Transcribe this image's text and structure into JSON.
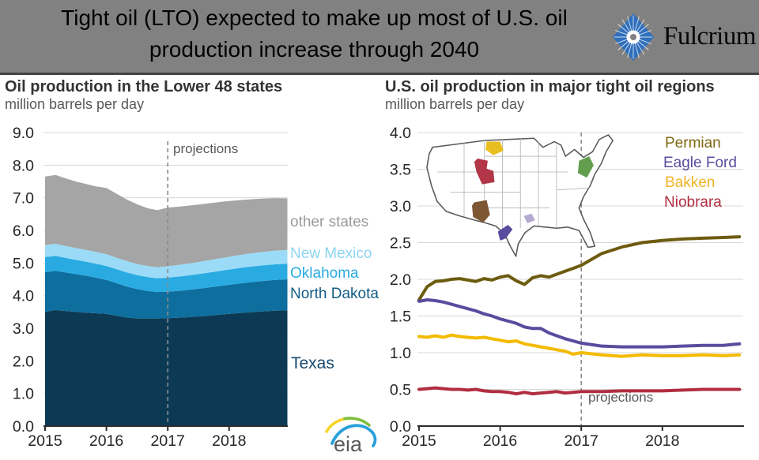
{
  "header": {
    "title_line1": "Tight oil (LTO) expected to make up most of U.S. oil",
    "title_line2": "production increase through 2040",
    "logo_text": "Fulcrium",
    "background_color": "#818181",
    "logo_diamond_color": "#2f6fbc"
  },
  "footer": {
    "eia_text": "eia"
  },
  "colors": {
    "gridline": "#d8d8d8",
    "axis": "#2b2b2b",
    "projection_dash": "#8a8a8a",
    "eia_green": "#7fbf3f",
    "eia_yellow": "#f5d327",
    "eia_blue": "#2aa0da"
  },
  "chart_data": [
    {
      "type": "area",
      "stacked": true,
      "title": "Oil production in the Lower 48 states",
      "subtitle": "million barrels per day",
      "annotation": "projections",
      "projection_start_x": 2017,
      "ylim": [
        0,
        9
      ],
      "yticks": [
        "0.0",
        "1.0",
        "2.0",
        "3.0",
        "4.0",
        "5.0",
        "6.0",
        "7.0",
        "8.0",
        "9.0"
      ],
      "xticks": [
        "2015",
        "2016",
        "2017",
        "2018"
      ],
      "x": [
        2015,
        2015.17,
        2015.33,
        2015.5,
        2015.67,
        2015.83,
        2016,
        2016.17,
        2016.33,
        2016.5,
        2016.67,
        2016.83,
        2017,
        2017.25,
        2017.5,
        2017.75,
        2018,
        2018.25,
        2018.5,
        2018.75,
        2018.95
      ],
      "series": [
        {
          "name": "Texas",
          "color": "#0c3a55",
          "label_color": "#174a70",
          "values": [
            3.5,
            3.56,
            3.53,
            3.5,
            3.48,
            3.46,
            3.44,
            3.38,
            3.33,
            3.3,
            3.3,
            3.3,
            3.31,
            3.33,
            3.36,
            3.4,
            3.44,
            3.48,
            3.51,
            3.54,
            3.55
          ]
        },
        {
          "name": "North Dakota",
          "color": "#0e6e9e",
          "label_color": "#135c85",
          "values": [
            1.22,
            1.2,
            1.18,
            1.16,
            1.13,
            1.09,
            1.04,
            1.0,
            0.95,
            0.9,
            0.84,
            0.81,
            0.81,
            0.83,
            0.85,
            0.87,
            0.89,
            0.91,
            0.93,
            0.94,
            0.95
          ]
        },
        {
          "name": "Oklahoma",
          "color": "#29abe2",
          "label_color": "#29abe2",
          "values": [
            0.46,
            0.46,
            0.45,
            0.44,
            0.43,
            0.43,
            0.43,
            0.43,
            0.43,
            0.43,
            0.43,
            0.42,
            0.43,
            0.44,
            0.45,
            0.46,
            0.47,
            0.48,
            0.48,
            0.48,
            0.48
          ]
        },
        {
          "name": "New Mexico",
          "color": "#9bdbf7",
          "label_color": "#8ed4f2",
          "values": [
            0.37,
            0.37,
            0.36,
            0.36,
            0.36,
            0.36,
            0.36,
            0.35,
            0.35,
            0.34,
            0.34,
            0.34,
            0.35,
            0.36,
            0.37,
            0.38,
            0.39,
            0.4,
            0.41,
            0.42,
            0.42
          ]
        },
        {
          "name": "other states",
          "color": "#a5a5a5",
          "label_color": "#9b9b9b",
          "values": [
            2.1,
            2.11,
            2.08,
            2.04,
            2.02,
            2.01,
            2.03,
            1.96,
            1.89,
            1.83,
            1.77,
            1.75,
            1.8,
            1.78,
            1.76,
            1.74,
            1.71,
            1.67,
            1.64,
            1.61,
            1.58
          ]
        }
      ]
    },
    {
      "type": "line",
      "title": "U.S. oil production in major tight oil regions",
      "subtitle": "million barrels per day",
      "annotation": "projections",
      "projection_start_x": 2017,
      "ylim": [
        0,
        4
      ],
      "yticks": [
        "0.0",
        "0.5",
        "1.0",
        "1.5",
        "2.0",
        "2.5",
        "3.0",
        "3.5",
        "4.0"
      ],
      "xticks": [
        "2015",
        "2016",
        "2017",
        "2018"
      ],
      "x": [
        2015,
        2015.1,
        2015.2,
        2015.3,
        2015.4,
        2015.5,
        2015.6,
        2015.7,
        2015.8,
        2015.9,
        2016,
        2016.1,
        2016.2,
        2016.3,
        2016.4,
        2016.5,
        2016.6,
        2016.7,
        2016.8,
        2016.9,
        2017,
        2017.25,
        2017.5,
        2017.75,
        2018,
        2018.25,
        2018.5,
        2018.75,
        2018.95
      ],
      "series": [
        {
          "name": "Permian",
          "color": "#6d5b0f",
          "label_color": "#7c660f",
          "values": [
            1.72,
            1.9,
            1.97,
            1.98,
            2.0,
            2.01,
            1.99,
            1.97,
            2.01,
            1.99,
            2.03,
            2.05,
            1.98,
            1.93,
            2.02,
            2.05,
            2.03,
            2.07,
            2.11,
            2.15,
            2.19,
            2.35,
            2.44,
            2.5,
            2.53,
            2.55,
            2.56,
            2.57,
            2.58
          ]
        },
        {
          "name": "Eagle Ford",
          "color": "#5b4b9e",
          "label_color": "#5b4b9e",
          "values": [
            1.7,
            1.72,
            1.71,
            1.69,
            1.66,
            1.63,
            1.6,
            1.57,
            1.53,
            1.5,
            1.46,
            1.43,
            1.4,
            1.35,
            1.33,
            1.33,
            1.27,
            1.23,
            1.19,
            1.16,
            1.13,
            1.09,
            1.08,
            1.08,
            1.08,
            1.09,
            1.1,
            1.1,
            1.12
          ]
        },
        {
          "name": "Bakken",
          "color": "#f3bb00",
          "label_color": "#f0b428",
          "values": [
            1.22,
            1.21,
            1.23,
            1.21,
            1.24,
            1.22,
            1.21,
            1.2,
            1.21,
            1.19,
            1.17,
            1.15,
            1.16,
            1.12,
            1.1,
            1.08,
            1.06,
            1.04,
            1.02,
            0.98,
            1.0,
            0.97,
            0.95,
            0.97,
            0.96,
            0.96,
            0.97,
            0.96,
            0.97
          ]
        },
        {
          "name": "Niobrara",
          "color": "#b02e3f",
          "label_color": "#b02e3f",
          "values": [
            0.5,
            0.51,
            0.52,
            0.51,
            0.5,
            0.5,
            0.49,
            0.5,
            0.48,
            0.47,
            0.47,
            0.46,
            0.44,
            0.46,
            0.44,
            0.45,
            0.46,
            0.47,
            0.45,
            0.46,
            0.47,
            0.47,
            0.48,
            0.48,
            0.48,
            0.49,
            0.5,
            0.5,
            0.5
          ]
        }
      ],
      "map_inset": {
        "outline_color": "#5a5a5a",
        "state_line_color": "#b5b5b5",
        "regions": [
          {
            "id": "region-gold-bakken",
            "color": "#e8be1e"
          },
          {
            "id": "region-red-niobrara",
            "color": "#b23648"
          },
          {
            "id": "region-brown-permian",
            "color": "#7d5633"
          },
          {
            "id": "region-purple-eagle-ford",
            "color": "#5b4b9e"
          },
          {
            "id": "region-light-purple",
            "color": "#b5abd1"
          },
          {
            "id": "region-green-east",
            "color": "#639e4f"
          }
        ]
      }
    }
  ]
}
